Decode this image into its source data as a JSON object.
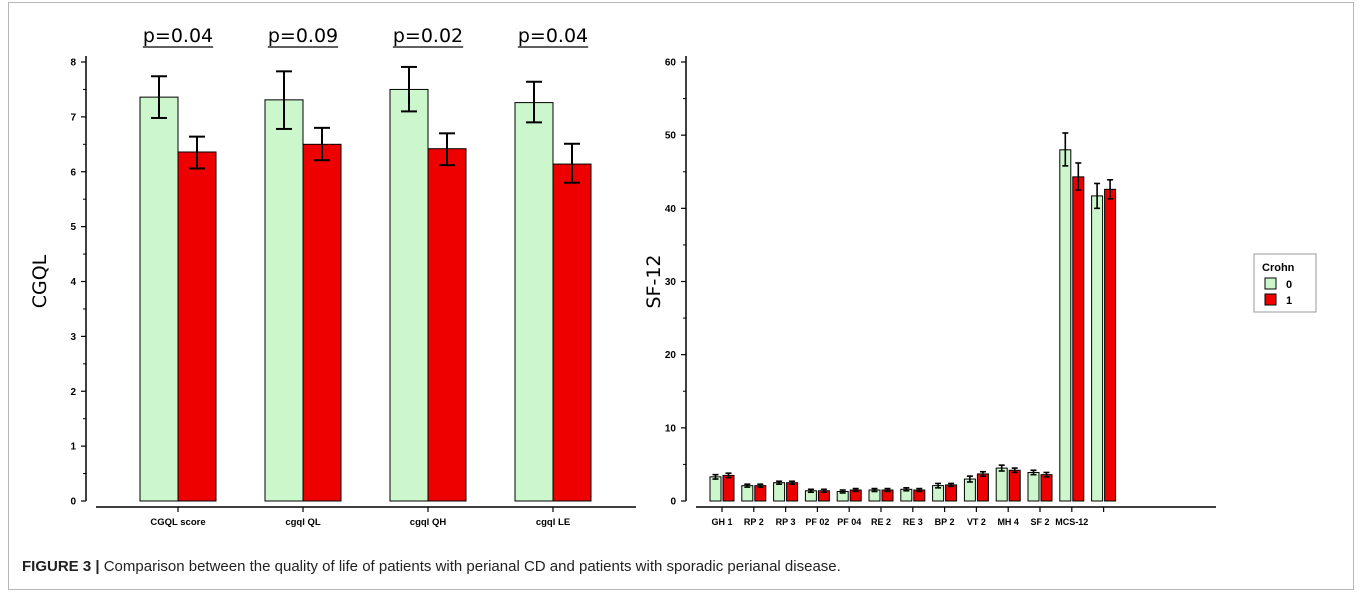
{
  "caption": {
    "label": "FIGURE 3 |",
    "text": " Comparison between the quality of life of patients with perianal CD and patients with sporadic perianal disease."
  },
  "colors": {
    "group0": "#ccf7cc",
    "group1": "#ee0000",
    "axis": "#000000"
  },
  "chart_data": [
    {
      "type": "bar",
      "ylabel": "CGQL",
      "ylim": [
        0,
        8
      ],
      "yticks": [
        "0",
        "1",
        "2",
        "3",
        "4",
        "5",
        "6",
        "7",
        "8"
      ],
      "categories": [
        "CGQL score",
        "cgql QL",
        "cgql QH",
        "cgql LE"
      ],
      "annotations": [
        "p=0.04",
        "p=0.09",
        "p=0.02",
        "p=0.04"
      ],
      "series": [
        {
          "values": [
            7.36,
            7.31,
            7.5,
            7.26
          ],
          "err_low": [
            6.98,
            6.78,
            7.1,
            6.9
          ],
          "err_high": [
            7.74,
            7.83,
            7.91,
            7.64
          ]
        },
        {
          "values": [
            6.36,
            6.5,
            6.42,
            6.14
          ],
          "err_low": [
            6.06,
            6.21,
            6.12,
            5.8
          ],
          "err_high": [
            6.64,
            6.8,
            6.7,
            6.51
          ]
        }
      ]
    },
    {
      "type": "bar",
      "ylabel": "SF-12",
      "ylim": [
        0,
        60
      ],
      "yticks": [
        "0",
        "10",
        "20",
        "30",
        "40",
        "50",
        "60"
      ],
      "categories": [
        "GH 1",
        "RP 2",
        "RP 3",
        "PF 02",
        "PF 04",
        "RE 2",
        "RE 3",
        "BP 2",
        "VT 2",
        "MH 4",
        "SF 2",
        "MCS-12",
        ""
      ],
      "legend": {
        "title": "Crohn",
        "entries": [
          "0",
          "1"
        ],
        "position": "right"
      },
      "series": [
        {
          "name": "0",
          "values": [
            3.3,
            2.1,
            2.5,
            1.4,
            1.3,
            1.5,
            1.6,
            2.1,
            3.0,
            4.5,
            3.9,
            48.0,
            41.7
          ],
          "err_low": [
            3.0,
            1.9,
            2.3,
            1.2,
            1.1,
            1.3,
            1.4,
            1.8,
            2.6,
            4.1,
            3.6,
            45.8,
            40.0
          ],
          "err_high": [
            3.6,
            2.3,
            2.7,
            1.6,
            1.5,
            1.7,
            1.8,
            2.4,
            3.4,
            4.9,
            4.2,
            50.3,
            43.4
          ]
        },
        {
          "name": "1",
          "values": [
            3.5,
            2.1,
            2.5,
            1.4,
            1.5,
            1.5,
            1.5,
            2.2,
            3.7,
            4.2,
            3.6,
            44.3,
            42.6
          ],
          "err_low": [
            3.2,
            1.9,
            2.3,
            1.2,
            1.3,
            1.3,
            1.3,
            2.0,
            3.4,
            3.9,
            3.3,
            42.5,
            41.3
          ],
          "err_high": [
            3.8,
            2.3,
            2.7,
            1.6,
            1.7,
            1.7,
            1.7,
            2.4,
            4.0,
            4.5,
            3.9,
            46.2,
            43.9
          ]
        }
      ]
    }
  ]
}
